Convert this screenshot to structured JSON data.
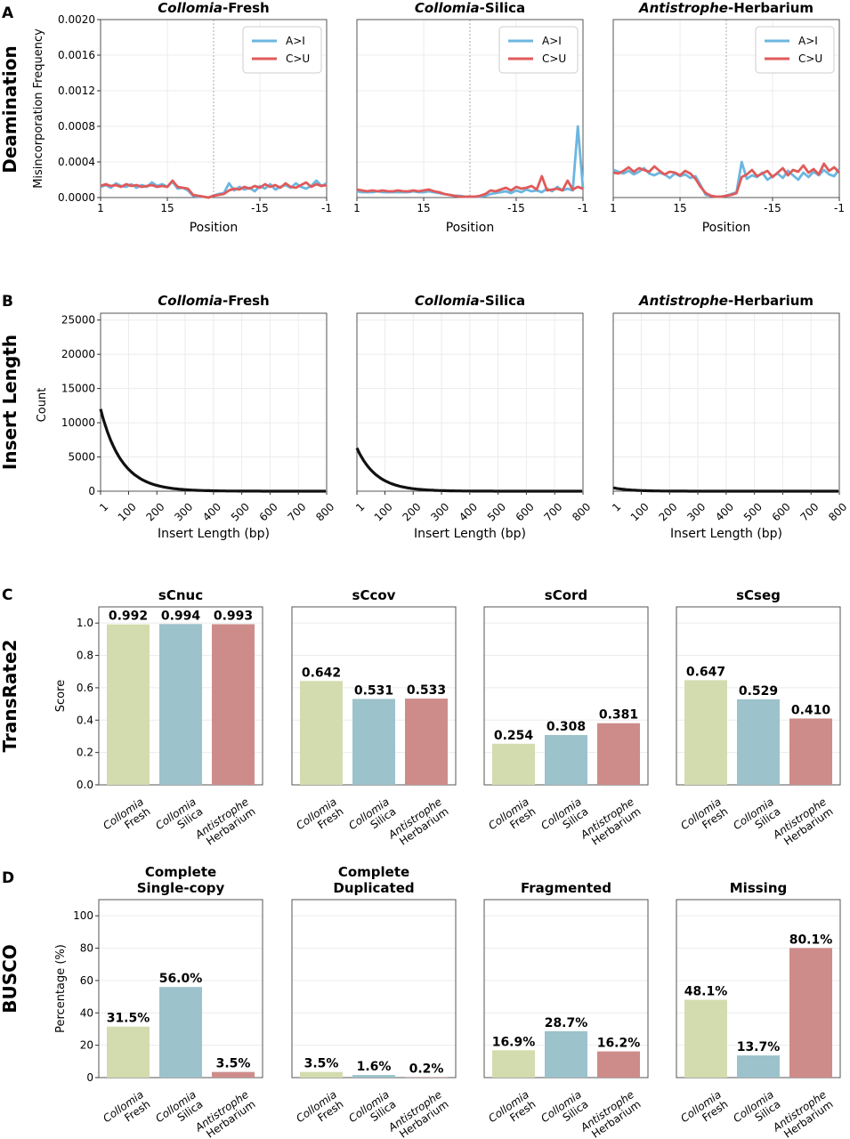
{
  "colors": {
    "green": "#d3dcae",
    "blue": "#9cc2cb",
    "red": "#cd8c8a",
    "line_blue": "#6cb6e0",
    "line_red": "#e05a5a"
  },
  "panel_letters": [
    "A",
    "B",
    "C",
    "D"
  ],
  "row_titles": [
    "Deamination",
    "Insert Length",
    "TransRate2",
    "BUSCO"
  ],
  "chart_data": [
    {
      "type": "line",
      "panel": "A",
      "row_title": "Deamination",
      "ylabel": "Misincorporation Frequency",
      "xlabel": "Position",
      "xticklabels": [
        "1",
        "15",
        "-15",
        "-1"
      ],
      "ylim": [
        0,
        0.002
      ],
      "yticks": [
        "0.0000",
        "0.0004",
        "0.0008",
        "0.0012",
        "0.0016",
        "0.0020"
      ],
      "legend": [
        "A>I",
        "C>U"
      ],
      "legend_position": "top-right",
      "subplots": [
        {
          "genus": "Collomia",
          "suffix": "-Fresh",
          "series": [
            {
              "name": "A>I",
              "values": [
                0.00012,
                0.00014,
                0.00011,
                0.00016,
                0.00013,
                0.00012,
                0.00015,
                0.00011,
                0.00014,
                0.00012,
                0.00017,
                0.00013,
                0.00015,
                0.00012,
                0.00018,
                0.0001,
                0.00011,
                8e-05,
                2e-05,
                1e-05,
                1e-05,
                0.0,
                2e-05,
                4e-05,
                5e-05,
                0.00016,
                8e-05,
                0.00012,
                9e-05,
                0.00011,
                7e-05,
                0.00013,
                0.0001,
                0.00015,
                9e-05,
                0.00012,
                0.00014,
                0.00011,
                0.00016,
                0.00012,
                0.0001,
                0.00013,
                0.00019,
                0.00013,
                0.00016
              ]
            },
            {
              "name": "C>U",
              "values": [
                0.00013,
                0.00015,
                0.00013,
                0.00014,
                0.00012,
                0.00015,
                0.00013,
                0.00014,
                0.00012,
                0.00013,
                0.00014,
                0.00012,
                0.00013,
                0.00012,
                0.00019,
                0.00012,
                0.00011,
                0.0001,
                3e-05,
                2e-05,
                1e-05,
                0.0,
                2e-05,
                3e-05,
                4e-05,
                8e-05,
                0.0001,
                9e-05,
                0.00012,
                0.0001,
                0.00013,
                0.00011,
                0.00015,
                0.00012,
                0.00014,
                0.00011,
                0.00016,
                0.00012,
                0.00011,
                0.00014,
                0.00017,
                0.00012,
                0.00015,
                0.00013,
                0.00014
              ]
            }
          ]
        },
        {
          "genus": "Collomia",
          "suffix": "-Silica",
          "series": [
            {
              "name": "A>I",
              "values": [
                7e-05,
                6e-05,
                6e-05,
                6e-05,
                7e-05,
                6e-05,
                6e-05,
                6e-05,
                6e-05,
                6e-05,
                6e-05,
                7e-05,
                6e-05,
                6e-05,
                7e-05,
                6e-05,
                5e-05,
                4e-05,
                3e-05,
                2e-05,
                2e-05,
                1e-05,
                1e-05,
                1e-05,
                1e-05,
                2e-05,
                4e-05,
                5e-05,
                6e-05,
                7e-05,
                5e-05,
                8e-05,
                6e-05,
                9e-05,
                7e-05,
                8e-05,
                6e-05,
                0.0001,
                7e-05,
                0.00012,
                8e-05,
                0.0001,
                8e-05,
                0.0008,
                0.0001
              ]
            },
            {
              "name": "C>U",
              "values": [
                9e-05,
                8e-05,
                7e-05,
                8e-05,
                7e-05,
                8e-05,
                7e-05,
                7e-05,
                8e-05,
                7e-05,
                7e-05,
                8e-05,
                7e-05,
                8e-05,
                9e-05,
                7e-05,
                6e-05,
                4e-05,
                3e-05,
                2e-05,
                1e-05,
                1e-05,
                1e-05,
                1e-05,
                2e-05,
                4e-05,
                8e-05,
                7e-05,
                9e-05,
                0.00011,
                8e-05,
                0.00012,
                0.0001,
                0.00011,
                0.00013,
                9e-05,
                0.00024,
                8e-05,
                9e-05,
                0.0001,
                8e-05,
                0.00019,
                9e-05,
                0.00012,
                0.0001
              ]
            }
          ]
        },
        {
          "genus": "Antistrophe",
          "suffix": "-Herbarium",
          "series": [
            {
              "name": "A>I",
              "values": [
                0.00031,
                0.00029,
                0.00027,
                0.0003,
                0.00026,
                0.00029,
                0.00033,
                0.00027,
                0.00025,
                0.00028,
                0.00026,
                0.00022,
                0.00027,
                0.00024,
                0.00026,
                0.00022,
                0.00024,
                0.00014,
                3e-05,
                2e-05,
                1e-05,
                1e-05,
                2e-05,
                4e-05,
                6e-05,
                0.0004,
                0.00021,
                0.00025,
                0.00023,
                0.00028,
                0.0002,
                0.00024,
                0.00027,
                0.00022,
                0.0003,
                0.00025,
                0.0002,
                0.00028,
                0.00023,
                0.00029,
                0.00025,
                0.00031,
                0.00026,
                0.00024,
                0.00032
              ]
            },
            {
              "name": "C>U",
              "values": [
                0.00028,
                0.00027,
                0.0003,
                0.00034,
                0.00029,
                0.00033,
                0.00031,
                0.00029,
                0.00035,
                0.0003,
                0.00026,
                0.00029,
                0.00028,
                0.00025,
                0.0003,
                0.00027,
                0.00021,
                0.00012,
                5e-05,
                2e-05,
                1e-05,
                1e-05,
                2e-05,
                3e-05,
                5e-05,
                0.00023,
                0.00026,
                0.00031,
                0.00024,
                0.00027,
                0.0003,
                0.00023,
                0.00028,
                0.00033,
                0.00025,
                0.00031,
                0.00029,
                0.00036,
                0.00028,
                0.00032,
                0.00026,
                0.00038,
                0.0003,
                0.00034,
                0.00028
              ]
            }
          ]
        }
      ]
    },
    {
      "type": "line",
      "panel": "B",
      "row_title": "Insert Length",
      "ylabel": "Count",
      "xlabel": "Insert Length (bp)",
      "xticks": [
        1,
        100,
        200,
        300,
        400,
        500,
        600,
        700,
        800
      ],
      "xlim": [
        1,
        800
      ],
      "ylim": [
        0,
        26000
      ],
      "yticks": [
        0,
        5000,
        10000,
        15000,
        20000,
        25000
      ],
      "subplots": [
        {
          "genus": "Collomia",
          "suffix": "-Fresh",
          "start_count": 12000,
          "decay_bp": 75
        },
        {
          "genus": "Collomia",
          "suffix": "-Silica",
          "start_count": 6300,
          "decay_bp": 70
        },
        {
          "genus": "Antistrophe",
          "suffix": "-Herbarium",
          "start_count": 500,
          "decay_bp": 60
        }
      ]
    },
    {
      "type": "bar",
      "panel": "C",
      "row_title": "TransRate2",
      "ylabel": "Score",
      "ylim": [
        0,
        1.1
      ],
      "yticks": [
        "0.0",
        "0.2",
        "0.4",
        "0.6",
        "0.8",
        "1.0"
      ],
      "categories": [
        {
          "genus": "Collomia",
          "kind": "Fresh"
        },
        {
          "genus": "Collomia",
          "kind": "Silica"
        },
        {
          "genus": "Antistrophe",
          "kind": "Herbarium"
        }
      ],
      "metrics": [
        {
          "title": "sCnuc",
          "values": [
            0.992,
            0.994,
            0.993
          ],
          "labels": [
            "0.992",
            "0.994",
            "0.993"
          ]
        },
        {
          "title": "sCcov",
          "values": [
            0.642,
            0.531,
            0.533
          ],
          "labels": [
            "0.642",
            "0.531",
            "0.533"
          ]
        },
        {
          "title": "sCord",
          "values": [
            0.254,
            0.308,
            0.381
          ],
          "labels": [
            "0.254",
            "0.308",
            "0.381"
          ]
        },
        {
          "title": "sCseg",
          "values": [
            0.647,
            0.529,
            0.41
          ],
          "labels": [
            "0.647",
            "0.529",
            "0.410"
          ]
        }
      ]
    },
    {
      "type": "bar",
      "panel": "D",
      "row_title": "BUSCO",
      "ylabel": "Percentage (%)",
      "ylim": [
        0,
        110
      ],
      "yticks": [
        "0",
        "20",
        "40",
        "60",
        "80",
        "100"
      ],
      "categories": [
        {
          "genus": "Collomia",
          "kind": "Fresh"
        },
        {
          "genus": "Collomia",
          "kind": "Silica"
        },
        {
          "genus": "Antistrophe",
          "kind": "Herbarium"
        }
      ],
      "metrics": [
        {
          "title": [
            "Complete",
            "Single-copy"
          ],
          "values": [
            31.5,
            56.0,
            3.5
          ],
          "labels": [
            "31.5%",
            "56.0%",
            "3.5%"
          ]
        },
        {
          "title": [
            "Complete",
            "Duplicated"
          ],
          "values": [
            3.5,
            1.6,
            0.2
          ],
          "labels": [
            "3.5%",
            "1.6%",
            "0.2%"
          ]
        },
        {
          "title": [
            "Fragmented"
          ],
          "values": [
            16.9,
            28.7,
            16.2
          ],
          "labels": [
            "16.9%",
            "28.7%",
            "16.2%"
          ]
        },
        {
          "title": [
            "Missing"
          ],
          "values": [
            48.1,
            13.7,
            80.1
          ],
          "labels": [
            "48.1%",
            "13.7%",
            "80.1%"
          ]
        }
      ]
    }
  ]
}
